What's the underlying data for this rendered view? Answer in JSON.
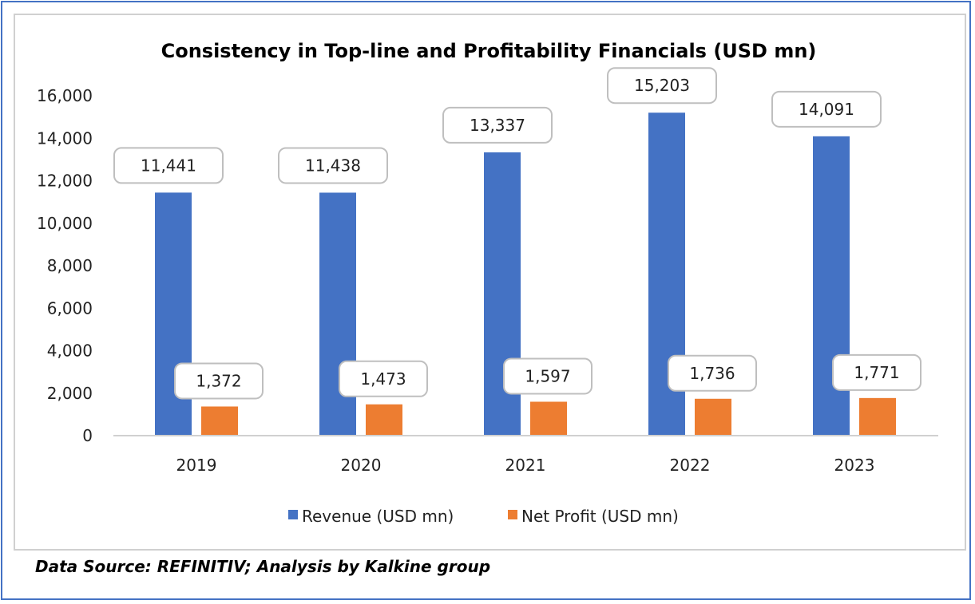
{
  "chart_data": {
    "type": "bar",
    "title": "Consistency in Top-line and Profitability Financials (USD mn)",
    "categories": [
      "2019",
      "2020",
      "2021",
      "2022",
      "2023"
    ],
    "series": [
      {
        "name": "Revenue (USD mn)",
        "color": "#4472c4",
        "values": [
          11441,
          11438,
          13337,
          15203,
          14091
        ],
        "labels": [
          "11,441",
          "11,438",
          "13,337",
          "15,203",
          "14,091"
        ]
      },
      {
        "name": "Net Profit (USD mn)",
        "color": "#ed7d31",
        "values": [
          1372,
          1473,
          1597,
          1736,
          1771
        ],
        "labels": [
          "1,372",
          "1,473",
          "1,597",
          "1,736",
          "1,771"
        ]
      }
    ],
    "xlabel": "",
    "ylabel": "",
    "ylim": [
      0,
      16000
    ],
    "yticks": [
      0,
      2000,
      4000,
      6000,
      8000,
      10000,
      12000,
      14000,
      16000
    ],
    "ytick_labels": [
      "0",
      "2,000",
      "4,000",
      "6,000",
      "8,000",
      "10,000",
      "12,000",
      "14,000",
      "16,000"
    ],
    "grid": false,
    "legend": "bottom-center"
  },
  "footer": {
    "source": "Data Source: REFINITIV; Analysis by Kalkine group"
  }
}
